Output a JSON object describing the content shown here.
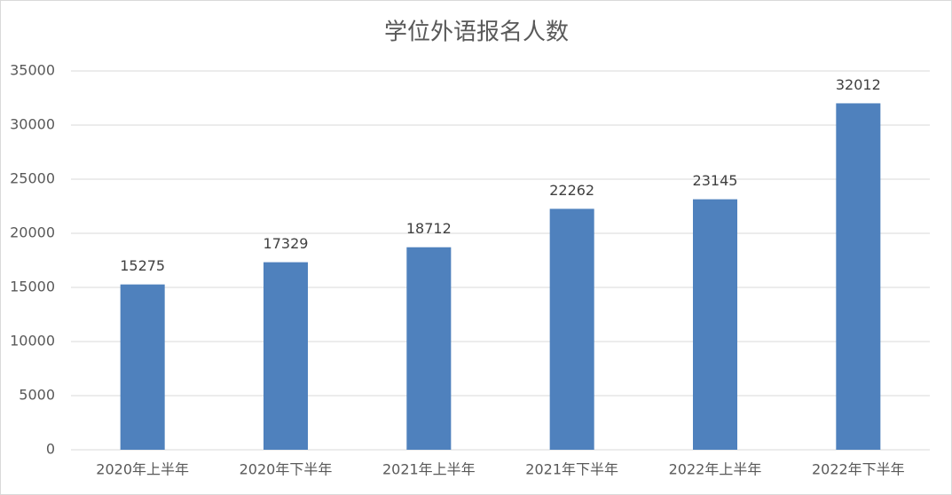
{
  "chart_data": {
    "type": "bar",
    "title": "学位外语报名人数",
    "categories": [
      "2020年上半年",
      "2020年下半年",
      "2021年上半年",
      "2021年下半年",
      "2022年上半年",
      "2022年下半年"
    ],
    "values": [
      15275,
      17329,
      18712,
      22262,
      23145,
      32012
    ],
    "color": "#4f81bd",
    "ylim": [
      0,
      35000
    ],
    "yticks": [
      0,
      5000,
      10000,
      15000,
      20000,
      25000,
      30000,
      35000
    ],
    "grid": true,
    "data_labels": true
  }
}
